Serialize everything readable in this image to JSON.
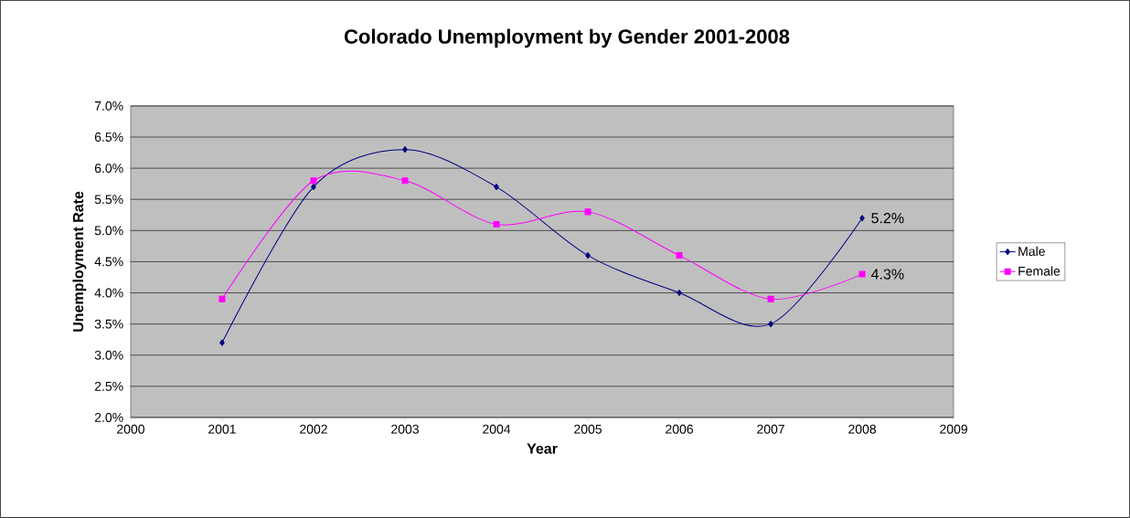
{
  "chart_data": {
    "type": "line",
    "title": "Colorado Unemployment by Gender 2001-2008",
    "xlabel": "Year",
    "ylabel": "Unemployment Rate",
    "x": [
      2001,
      2002,
      2003,
      2004,
      2005,
      2006,
      2007,
      2008
    ],
    "series": [
      {
        "name": "Male",
        "color": "#000080",
        "marker": "diamond",
        "values": [
          3.2,
          5.7,
          6.3,
          5.7,
          4.6,
          4.0,
          3.5,
          5.2
        ],
        "value_labels": [
          null,
          null,
          null,
          null,
          null,
          null,
          null,
          "5.2%"
        ]
      },
      {
        "name": "Female",
        "color": "#ff00ff",
        "marker": "square",
        "values": [
          3.9,
          5.8,
          5.8,
          5.1,
          5.3,
          4.6,
          3.9,
          4.3
        ],
        "value_labels": [
          null,
          null,
          null,
          null,
          null,
          null,
          null,
          "4.3%"
        ]
      }
    ],
    "xlim": [
      2000,
      2009
    ],
    "xticks": [
      2000,
      2001,
      2002,
      2003,
      2004,
      2005,
      2006,
      2007,
      2008,
      2009
    ],
    "ylim": [
      2,
      7
    ],
    "yticks": [
      {
        "value": 2,
        "label": "2.0%"
      },
      {
        "value": 2.5,
        "label": "2.5%"
      },
      {
        "value": 3,
        "label": "3.0%"
      },
      {
        "value": 3.5,
        "label": "3.5%"
      },
      {
        "value": 4,
        "label": "4.0%"
      },
      {
        "value": 4.5,
        "label": "4.5%"
      },
      {
        "value": 5,
        "label": "5.0%"
      },
      {
        "value": 5.5,
        "label": "5.5%"
      },
      {
        "value": 6,
        "label": "6.0%"
      },
      {
        "value": 6.5,
        "label": "6.5%"
      },
      {
        "value": 7,
        "label": "7.0%"
      }
    ],
    "grid": "y",
    "legend": "right"
  }
}
